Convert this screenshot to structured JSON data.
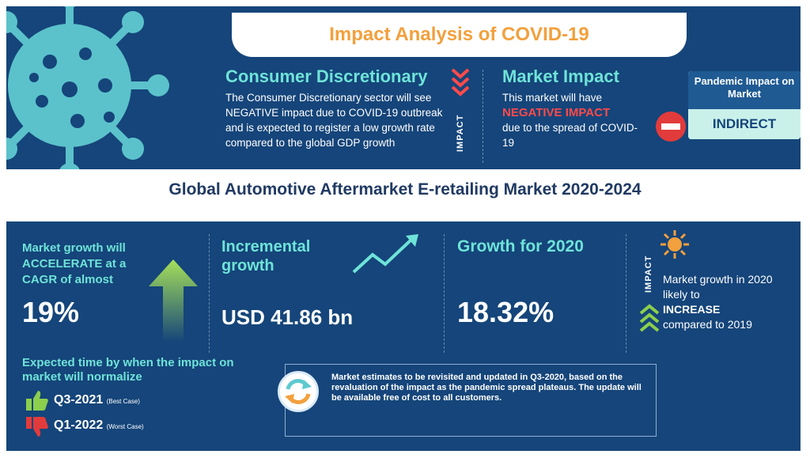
{
  "header": {
    "title": "Impact Analysis of COVID-19"
  },
  "consumer": {
    "heading": "Consumer Discretionary",
    "body": "The Consumer Discretionary sector will see NEGATIVE impact due to COVID-19 outbreak and is expected to register a low growth rate compared to the global GDP growth",
    "impact_label": "IMPACT"
  },
  "market_impact": {
    "heading": "Market Impact",
    "line1": "This market will have",
    "emphasis": "NEGATIVE IMPACT",
    "line2": "due to the spread of COVID-19"
  },
  "pandemic": {
    "title": "Pandemic Impact on Market",
    "value": "INDIRECT"
  },
  "main_title": "Global Automotive Aftermarket E-retailing Market 2020-2024",
  "stats": {
    "cagr_label": "Market growth will ACCELERATE at a CAGR of almost",
    "cagr_value": "19%",
    "incremental_label": "Incremental growth",
    "incremental_value": "USD 41.86 bn",
    "growth2020_label": "Growth for 2020",
    "growth2020_value": "18.32%",
    "impact_label": "IMPACT",
    "impact_line1": "Market growth in 2020 likely to",
    "impact_emphasis": "INCREASE",
    "impact_line2": "compared to 2019"
  },
  "normalize": {
    "heading": "Expected time by when the impact on market will normalize",
    "best": "Q3-2021",
    "best_tag": "(Best Case)",
    "worst": "Q1-2022",
    "worst_tag": "(Worst Case)"
  },
  "note": {
    "text": "Market estimates to be revisited and updated in Q3-2020, based on the revaluation of the impact as the pandemic spread plateaus. The update will be available free of cost to all customers."
  },
  "colors": {
    "panel": "#15457a",
    "teal": "#6fe3d8",
    "orange": "#f2a03d",
    "red": "#ff4a4a",
    "green": "#8ccf4d"
  }
}
